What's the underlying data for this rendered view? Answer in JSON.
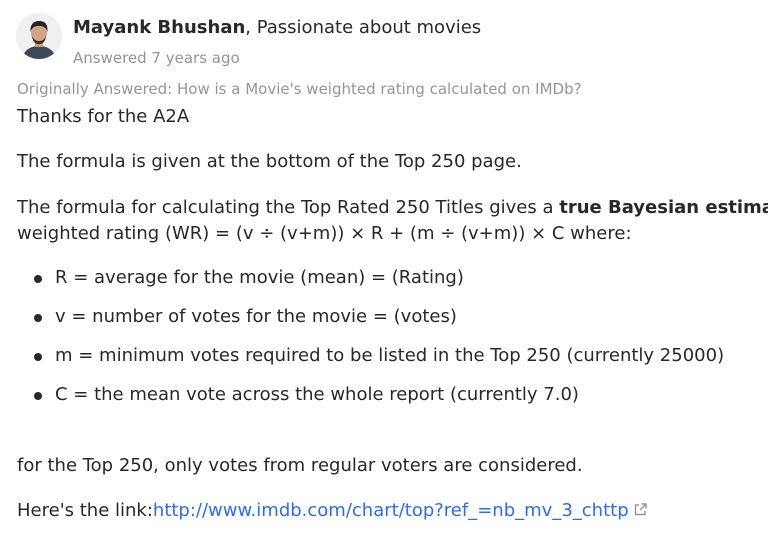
{
  "author": {
    "name": "Mayank Bhushan",
    "credential": ", Passionate about movies",
    "answered": "Answered 7 years ago"
  },
  "original_question": "Originally Answered: How is a Movie's weighted rating calculated on IMDb?",
  "answer": {
    "p1": "Thanks for the A2A",
    "p2": "The formula is given at the bottom of the Top 250 page.",
    "p3_prefix": "The formula for calculating the Top Rated 250 Titles gives a ",
    "p3_bold": "true Bayesian estimate",
    "p3_suffix": ":",
    "p4": "weighted rating (WR) = (v ÷ (v+m)) × R + (m ÷ (v+m)) × C where:",
    "bullets": [
      "R = average for the movie (mean) = (Rating)",
      "v = number of votes for the movie = (votes)",
      "m = minimum votes required to be listed in the Top 250 (currently 25000)",
      "C = the mean vote across the whole report (currently 7.0)"
    ],
    "p5": "for the Top 250, only votes from regular voters are considered.",
    "link_prefix": "Here's the link:",
    "link_text": "http://www.imdb.com/chart/top?ref_=nb_mv_3_chttp"
  },
  "icons": {
    "avatar": "user-avatar-photo",
    "external_link": "external-link-icon"
  },
  "colors": {
    "text": "#282829",
    "muted": "#939598",
    "link": "#2e69ff"
  }
}
